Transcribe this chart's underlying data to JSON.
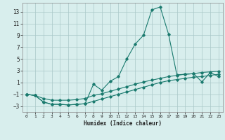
{
  "title": "",
  "xlabel": "Humidex (Indice chaleur)",
  "background_color": "#d8eeed",
  "line_color": "#1a7a6e",
  "grid_color": "#aac8c8",
  "xlim": [
    -0.5,
    23.5
  ],
  "ylim": [
    -4,
    14.5
  ],
  "yticks": [
    -3,
    -1,
    1,
    3,
    5,
    7,
    9,
    11,
    13
  ],
  "xticks": [
    0,
    1,
    2,
    3,
    4,
    5,
    6,
    7,
    8,
    9,
    10,
    11,
    12,
    13,
    14,
    15,
    16,
    17,
    18,
    19,
    20,
    21,
    22,
    23
  ],
  "line1_x": [
    0,
    1,
    2,
    3,
    4,
    5,
    6,
    7,
    8,
    9,
    10,
    11,
    12,
    13,
    14,
    15,
    16,
    17,
    18,
    19,
    20,
    21,
    22,
    23
  ],
  "line1_y": [
    -1.0,
    -1.2,
    -2.3,
    -2.7,
    -2.7,
    -2.8,
    -2.7,
    -2.6,
    0.7,
    -0.3,
    1.2,
    2.0,
    5.0,
    7.5,
    9.0,
    13.3,
    13.8,
    9.2,
    2.3,
    2.4,
    2.5,
    1.1,
    2.7,
    2.0
  ],
  "line2_x": [
    0,
    1,
    2,
    3,
    4,
    5,
    6,
    7,
    8,
    9,
    10,
    11,
    12,
    13,
    14,
    15,
    16,
    17,
    18,
    19,
    20,
    21,
    22,
    23
  ],
  "line2_y": [
    -1.0,
    -1.2,
    -2.3,
    -2.7,
    -2.7,
    -2.8,
    -2.7,
    -2.6,
    -2.2,
    -1.8,
    -1.4,
    -1.0,
    -0.6,
    -0.2,
    0.2,
    0.6,
    1.0,
    1.3,
    1.5,
    1.7,
    1.9,
    2.0,
    2.2,
    2.4
  ],
  "line3_x": [
    0,
    1,
    2,
    3,
    4,
    5,
    6,
    7,
    8,
    9,
    10,
    11,
    12,
    13,
    14,
    15,
    16,
    17,
    18,
    19,
    20,
    21,
    22,
    23
  ],
  "line3_y": [
    -1.0,
    -1.2,
    -1.7,
    -2.0,
    -2.0,
    -2.0,
    -1.9,
    -1.7,
    -1.2,
    -0.9,
    -0.5,
    -0.1,
    0.3,
    0.7,
    1.1,
    1.4,
    1.7,
    2.0,
    2.2,
    2.4,
    2.5,
    2.7,
    2.8,
    2.9
  ]
}
